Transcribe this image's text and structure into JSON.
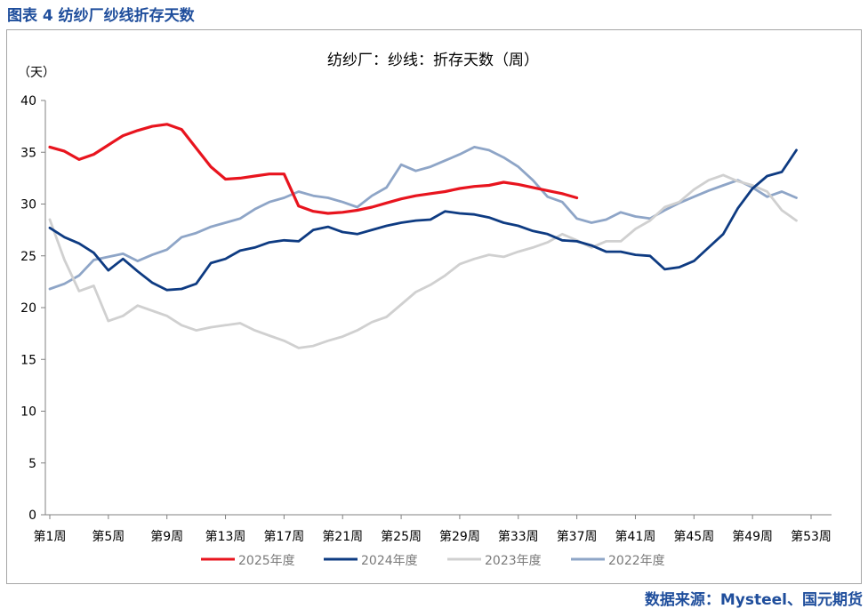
{
  "caption": "图表 4  纺纱厂纱线折存天数",
  "source": "数据来源：Mysteel、国元期货",
  "chart_data": {
    "type": "line",
    "title": "纺纱厂：纱线：折存天数（周）",
    "ylabel": "（天）",
    "xlabel": "",
    "ylim": [
      0,
      40
    ],
    "yticks": [
      0,
      5,
      10,
      15,
      20,
      25,
      30,
      35,
      40
    ],
    "xrange": [
      1,
      53
    ],
    "xtick_weeks": [
      1,
      5,
      9,
      13,
      17,
      21,
      25,
      29,
      33,
      37,
      41,
      45,
      49,
      53
    ],
    "xtick_labels": [
      "第1周",
      "第5周",
      "第9周",
      "第13周",
      "第17周",
      "第21周",
      "第25周",
      "第29周",
      "第33周",
      "第37周",
      "第41周",
      "第45周",
      "第49周",
      "第53周"
    ],
    "grid": false,
    "legend_position": "bottom",
    "series": [
      {
        "name": "2025年度",
        "color": "#e8141e",
        "width": 3.2,
        "start_week": 1,
        "values": [
          35.5,
          35.1,
          34.3,
          34.8,
          35.7,
          36.6,
          37.1,
          37.5,
          37.7,
          37.2,
          35.4,
          33.6,
          32.4,
          32.5,
          32.7,
          32.9,
          32.9,
          29.8,
          29.3,
          29.1,
          29.2,
          29.4,
          29.7,
          30.1,
          30.5,
          30.8,
          31.0,
          31.2,
          31.5,
          31.7,
          31.8,
          32.1,
          31.9,
          31.6,
          31.3,
          31.0,
          30.6
        ]
      },
      {
        "name": "2024年度",
        "color": "#0e3b82",
        "width": 2.8,
        "start_week": 1,
        "values": [
          27.7,
          26.8,
          26.2,
          25.3,
          23.6,
          24.7,
          23.5,
          22.4,
          21.7,
          21.8,
          22.3,
          24.3,
          24.7,
          25.5,
          25.8,
          26.3,
          26.5,
          26.4,
          27.5,
          27.8,
          27.3,
          27.1,
          27.5,
          27.9,
          28.2,
          28.4,
          28.5,
          29.3,
          29.1,
          29.0,
          28.7,
          28.2,
          27.9,
          27.4,
          27.1,
          26.5,
          26.4,
          26.0,
          25.4,
          25.4,
          25.1,
          25.0,
          23.7,
          23.9,
          24.5,
          25.8,
          27.1,
          29.6,
          31.5,
          32.7,
          33.1,
          35.2
        ]
      },
      {
        "name": "2023年度",
        "color": "#d0d0d0",
        "width": 2.8,
        "start_week": 1,
        "values": [
          28.5,
          24.6,
          21.6,
          22.1,
          18.7,
          19.2,
          20.2,
          19.7,
          19.2,
          18.3,
          17.8,
          18.1,
          18.3,
          18.5,
          17.8,
          17.3,
          16.8,
          16.1,
          16.3,
          16.8,
          17.2,
          17.8,
          18.6,
          19.1,
          20.3,
          21.5,
          22.2,
          23.1,
          24.2,
          24.7,
          25.1,
          24.9,
          25.4,
          25.8,
          26.3,
          27.1,
          26.5,
          25.8,
          26.4,
          26.4,
          27.6,
          28.4,
          29.7,
          30.2,
          31.4,
          32.3,
          32.8,
          32.2,
          31.8,
          31.2,
          29.4,
          28.4
        ]
      },
      {
        "name": "2022年度",
        "color": "#8ea5c7",
        "width": 2.8,
        "start_week": 1,
        "values": [
          21.8,
          22.3,
          23.1,
          24.6,
          24.9,
          25.2,
          24.5,
          25.1,
          25.6,
          26.8,
          27.2,
          27.8,
          28.2,
          28.6,
          29.5,
          30.2,
          30.6,
          31.2,
          30.8,
          30.6,
          30.2,
          29.7,
          30.8,
          31.6,
          33.8,
          33.2,
          33.6,
          34.2,
          34.8,
          35.5,
          35.2,
          34.5,
          33.6,
          32.3,
          30.7,
          30.2,
          28.6,
          28.2,
          28.5,
          29.2,
          28.8,
          28.6,
          29.4,
          30.1,
          30.7,
          31.3,
          31.8,
          32.3,
          31.6,
          30.7,
          31.2,
          30.6
        ]
      }
    ]
  }
}
